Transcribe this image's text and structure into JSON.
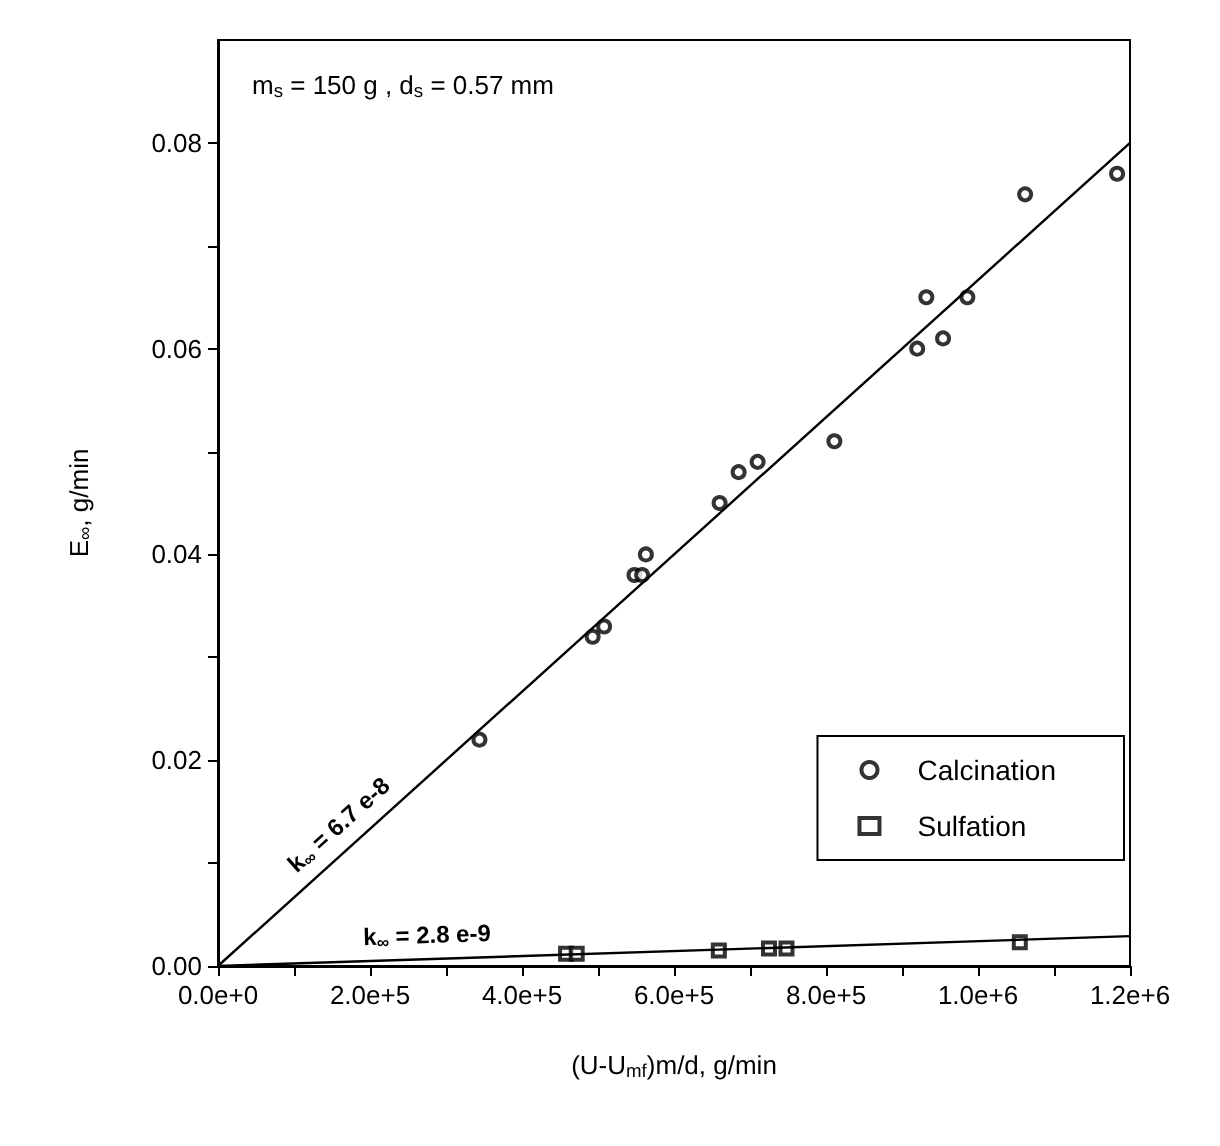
{
  "chart_data": {
    "type": "scatter",
    "xlabel": "(U-U$_{mf}$)m/d, g/min",
    "ylabel": "E$_{∞}$, g/min",
    "xlim": [
      0,
      1200000
    ],
    "ylim": [
      0,
      0.09
    ],
    "xticks": [
      {
        "value": 0,
        "label": "0.0e+0"
      },
      {
        "value": 100000,
        "label": null
      },
      {
        "value": 200000,
        "label": "2.0e+5"
      },
      {
        "value": 300000,
        "label": null
      },
      {
        "value": 400000,
        "label": "4.0e+5"
      },
      {
        "value": 500000,
        "label": null
      },
      {
        "value": 600000,
        "label": "6.0e+5"
      },
      {
        "value": 700000,
        "label": null
      },
      {
        "value": 800000,
        "label": "8.0e+5"
      },
      {
        "value": 900000,
        "label": null
      },
      {
        "value": 1000000,
        "label": "1.0e+6"
      },
      {
        "value": 1100000,
        "label": null
      },
      {
        "value": 1200000,
        "label": "1.2e+6"
      }
    ],
    "yticks": [
      {
        "value": 0,
        "label": "0.00"
      },
      {
        "value": 0.01,
        "label": null
      },
      {
        "value": 0.02,
        "label": "0.02"
      },
      {
        "value": 0.03,
        "label": null
      },
      {
        "value": 0.04,
        "label": "0.04"
      },
      {
        "value": 0.05,
        "label": null
      },
      {
        "value": 0.06,
        "label": "0.06"
      },
      {
        "value": 0.07,
        "label": null
      },
      {
        "value": 0.08,
        "label": "0.08"
      }
    ],
    "grid": false,
    "legend": "center right",
    "series": [
      {
        "name": "Calcination",
        "color": "#000000",
        "marker": "circle",
        "x": [
          344000,
          493000,
          508000,
          548000,
          558000,
          563000,
          660000,
          685000,
          710000,
          811000,
          920000,
          932000,
          954000,
          986000,
          1062000,
          1183000
        ],
        "values": [
          0.022,
          0.032,
          0.033,
          0.038,
          0.038,
          0.04,
          0.045,
          0.048,
          0.049,
          0.051,
          0.06,
          0.065,
          0.061,
          0.065,
          0.075,
          0.077
        ]
      },
      {
        "name": "Sulfation",
        "color": "#000000",
        "marker": "square",
        "x": [
          458000,
          472000,
          659000,
          725000,
          748000,
          1055000
        ],
        "values": [
          0.0012,
          0.0012,
          0.0015,
          0.0017,
          0.0017,
          0.0023
        ]
      },
      {
        "type": "line",
        "color": "#000000",
        "marker": "none",
        "x": [
          0,
          1200000
        ],
        "values": [
          0,
          0.08
        ]
      },
      {
        "type": "line",
        "color": "#000000",
        "marker": "none",
        "x": [
          0,
          1200000
        ],
        "values": [
          0,
          0.0029
        ]
      }
    ],
    "annotations": [
      "m$_{s}$ = 150 g , d$_{s}$ = 0.57 mm",
      "k$_{∞}$ = 6.7 e-8",
      "k$_{∞}$ = 2.8 e-9"
    ]
  }
}
